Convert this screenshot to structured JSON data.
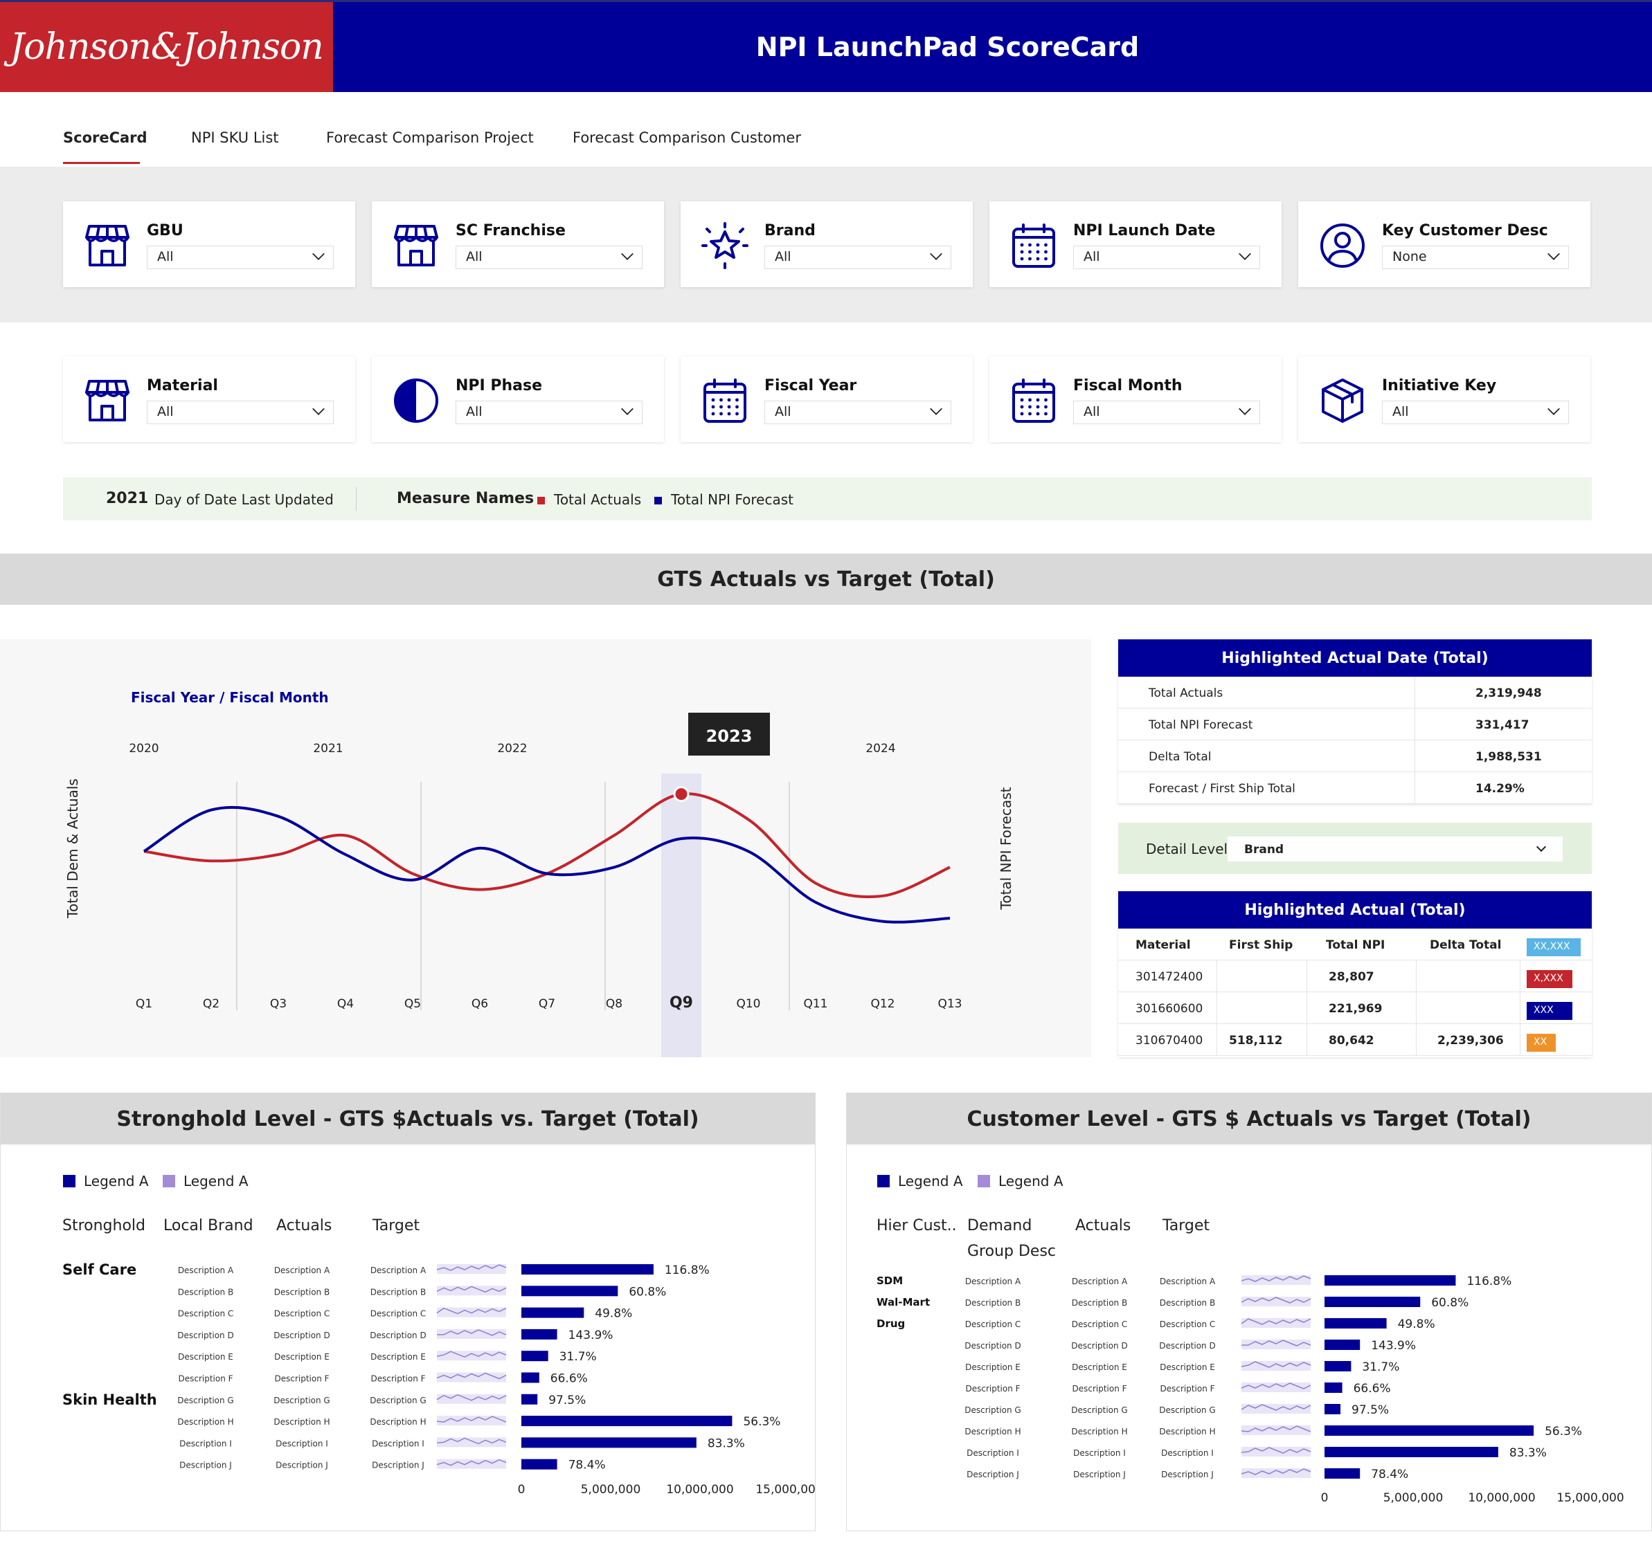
{
  "header": {
    "logo_text": "Johnson&Johnson",
    "title": "NPI LaunchPad ScoreCard",
    "brand_color": "#c4242b",
    "nav_color": "#000098"
  },
  "tabs": [
    "ScoreCard",
    "NPI SKU List",
    "Forecast Comparison Project",
    "Forecast Comparison Customer"
  ],
  "filters_row1": [
    {
      "label": "GBU",
      "value": "All",
      "icon": "store-icon"
    },
    {
      "label": "SC Franchise",
      "value": "All",
      "icon": "store-icon"
    },
    {
      "label": "Brand",
      "value": "All",
      "icon": "star-icon"
    },
    {
      "label": "NPI Launch Date",
      "value": "All",
      "icon": "calendar-icon"
    },
    {
      "label": "Key Customer Desc",
      "value": "None",
      "icon": "user-icon"
    }
  ],
  "filters_row2": [
    {
      "label": "Material",
      "value": "All",
      "icon": "store-icon"
    },
    {
      "label": "NPI Phase",
      "value": "All",
      "icon": "half-circle-icon"
    },
    {
      "label": "Fiscal Year",
      "value": "All",
      "icon": "calendar-icon"
    },
    {
      "label": "Fiscal Month",
      "value": "All",
      "icon": "calendar-icon"
    },
    {
      "label": "Initiative Key",
      "value": "All",
      "icon": "box-icon"
    }
  ],
  "infobar": {
    "year": "2021",
    "date_label": "Day of Date Last Updated",
    "measure_label": "Measure Names",
    "legend": [
      {
        "name": "Total Actuals",
        "color": "#c4242b"
      },
      {
        "name": "Total NPI Forecast",
        "color": "#000098"
      }
    ]
  },
  "gts_section_title": "GTS Actuals vs Target (Total)",
  "chart_data": {
    "type": "line",
    "title": "Fiscal Year / Fiscal Month",
    "ylabel": "Total Dem & Actuals",
    "y2label": "Total NPI Forecast",
    "years": [
      "2020",
      "2021",
      "2022",
      "2023",
      "2024"
    ],
    "categories": [
      "Q1",
      "Q2",
      "Q3",
      "Q4",
      "Q5",
      "Q6",
      "Q7",
      "Q8",
      "Q9",
      "Q10",
      "Q11",
      "Q12",
      "Q13"
    ],
    "highlight": {
      "category": "Q9",
      "tooltip": "2023"
    },
    "series": [
      {
        "name": "Total Actuals",
        "color": "#c4242b",
        "values": [
          0.52,
          0.46,
          0.5,
          0.62,
          0.38,
          0.28,
          0.38,
          0.62,
          0.88,
          0.72,
          0.32,
          0.24,
          0.42
        ]
      },
      {
        "name": "Total NPI Forecast",
        "color": "#000098",
        "values": [
          0.52,
          0.78,
          0.74,
          0.5,
          0.34,
          0.54,
          0.38,
          0.42,
          0.6,
          0.52,
          0.2,
          0.08,
          0.1
        ]
      }
    ],
    "grid": "vertical"
  },
  "highlighted_date": {
    "title": "Highlighted Actual Date (Total)",
    "rows": [
      {
        "k": "Total Actuals",
        "v": "2,319,948"
      },
      {
        "k": "Total NPI Forecast",
        "v": "331,417"
      },
      {
        "k": "Delta Total",
        "v": "1,988,531"
      },
      {
        "k": "Forecast / First Ship Total",
        "v": "14.29%"
      }
    ]
  },
  "detail": {
    "label": "Detail Level",
    "value": "Brand"
  },
  "highlighted_actual": {
    "title": "Highlighted Actual (Total)",
    "columns": [
      "Material",
      "First Ship",
      "Total NPI",
      "Delta Total"
    ],
    "rows": [
      {
        "material": "301472400",
        "first_ship": "",
        "total_npi": "28,807",
        "delta": "",
        "tag": "X,XXX",
        "tag_color": "#c4242b"
      },
      {
        "material": "301660600",
        "first_ship": "",
        "total_npi": "221,969",
        "delta": "",
        "tag": "XXX",
        "tag_color": "#000098"
      },
      {
        "material": "310670400",
        "first_ship": "518,112",
        "total_npi": "80,642",
        "delta": "2,239,306",
        "tag": "XX",
        "tag_color": "#f0922a"
      }
    ],
    "header_tag": "XX,XXX",
    "header_tag_color": "#5ab4e5"
  },
  "stronghold": {
    "title": "Stronghold Level - GTS $Actuals vs. Target (Total)",
    "legend": [
      {
        "name": "Legend A",
        "color": "#000098"
      },
      {
        "name": "Legend A",
        "color": "#a48bd8"
      }
    ],
    "columns": [
      "Stronghold",
      "Local Brand",
      "Actuals",
      "Target"
    ],
    "groups": [
      {
        "name": "Self Care",
        "row": 0
      },
      {
        "name": "Skin Health",
        "row": 6
      }
    ],
    "rows": [
      {
        "d": "Description A",
        "value": 7400000,
        "pct": "116.8%"
      },
      {
        "d": "Description B",
        "value": 5400000,
        "pct": "60.8%"
      },
      {
        "d": "Description C",
        "value": 3500000,
        "pct": "49.8%"
      },
      {
        "d": "Description D",
        "value": 2000000,
        "pct": "143.9%"
      },
      {
        "d": "Description E",
        "value": 1500000,
        "pct": "31.7%"
      },
      {
        "d": "Description F",
        "value": 1000000,
        "pct": "66.6%"
      },
      {
        "d": "Description G",
        "value": 900000,
        "pct": "97.5%"
      },
      {
        "d": "Description H",
        "value": 11800000,
        "pct": "56.3%"
      },
      {
        "d": "Description I",
        "value": 9800000,
        "pct": "83.3%"
      },
      {
        "d": "Description J",
        "value": 2000000,
        "pct": "78.4%"
      }
    ],
    "axis": [
      "0",
      "5,000,000",
      "10,000,000",
      "15,000,000"
    ]
  },
  "customer": {
    "title": "Customer Level - GTS $ Actuals vs Target (Total)",
    "legend": [
      {
        "name": "Legend A",
        "color": "#000098"
      },
      {
        "name": "Legend A",
        "color": "#a48bd8"
      }
    ],
    "columns": [
      "Hier Cust..",
      "Demand",
      "Group Desc",
      "Actuals",
      "Target"
    ],
    "groups": [
      {
        "name": "SDM",
        "row": 0
      },
      {
        "name": "Wal-Mart",
        "row": 1
      },
      {
        "name": "Drug",
        "row": 2
      }
    ],
    "rows": [
      {
        "d": "Description A",
        "value": 7400000,
        "pct": "116.8%"
      },
      {
        "d": "Description B",
        "value": 5400000,
        "pct": "60.8%"
      },
      {
        "d": "Description C",
        "value": 3500000,
        "pct": "49.8%"
      },
      {
        "d": "Description D",
        "value": 2000000,
        "pct": "143.9%"
      },
      {
        "d": "Description E",
        "value": 1500000,
        "pct": "31.7%"
      },
      {
        "d": "Description F",
        "value": 1000000,
        "pct": "66.6%"
      },
      {
        "d": "Description G",
        "value": 900000,
        "pct": "97.5%"
      },
      {
        "d": "Description H",
        "value": 11800000,
        "pct": "56.3%"
      },
      {
        "d": "Description I",
        "value": 9800000,
        "pct": "83.3%"
      },
      {
        "d": "Description J",
        "value": 2000000,
        "pct": "78.4%"
      }
    ],
    "axis": [
      "0",
      "5,000,000",
      "10,000,000",
      "15,000,000"
    ]
  }
}
